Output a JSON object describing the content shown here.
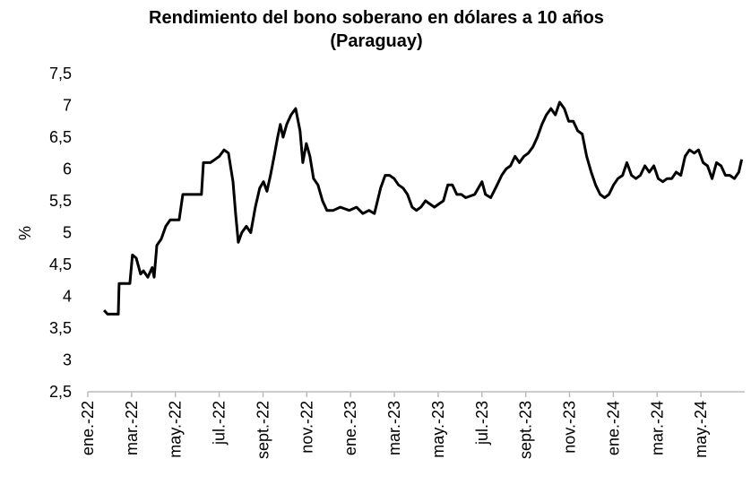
{
  "chart_data": {
    "type": "line",
    "title": [
      "Rendimiento del bono soberano en dólares a 10 años",
      "(Paraguay)"
    ],
    "y_label": "%",
    "color": "#000000",
    "x": [
      0.74,
      0.9,
      1.39,
      1.43,
      1.92,
      2.04,
      2.21,
      2.41,
      2.54,
      2.74,
      2.94,
      3.03,
      3.15,
      3.35,
      3.56,
      3.76,
      4.17,
      4.34,
      4.79,
      5.19,
      5.28,
      5.6,
      5.81,
      6.01,
      6.22,
      6.42,
      6.63,
      6.75,
      6.87,
      7.03,
      7.24,
      7.44,
      7.65,
      7.85,
      8.02,
      8.18,
      8.34,
      8.51,
      8.67,
      8.79,
      8.92,
      9.08,
      9.28,
      9.49,
      9.69,
      9.82,
      9.98,
      10.14,
      10.31,
      10.51,
      10.72,
      10.92,
      11.21,
      11.53,
      11.94,
      12.27,
      12.56,
      12.84,
      13.09,
      13.37,
      13.58,
      13.78,
      13.99,
      14.19,
      14.4,
      14.6,
      14.81,
      15.01,
      15.21,
      15.42,
      15.62,
      15.83,
      16.03,
      16.24,
      16.44,
      16.65,
      16.85,
      17.06,
      17.26,
      17.67,
      18.0,
      18.16,
      18.4,
      18.69,
      18.9,
      19.1,
      19.3,
      19.51,
      19.71,
      19.92,
      20.12,
      20.33,
      20.53,
      20.74,
      20.94,
      21.15,
      21.35,
      21.55,
      21.76,
      21.96,
      22.17,
      22.37,
      22.58,
      22.78,
      22.99,
      23.19,
      23.4,
      23.6,
      23.8,
      24.01,
      24.21,
      24.42,
      24.62,
      24.83,
      25.03,
      25.23,
      25.44,
      25.64,
      25.85,
      26.05,
      26.26,
      26.46,
      26.67,
      26.87,
      27.08,
      27.28,
      27.48,
      27.69,
      27.89,
      28.1,
      28.3,
      28.51,
      28.71,
      28.92,
      29.12,
      29.32,
      29.53,
      29.73,
      29.86
    ],
    "values": [
      3.78,
      3.72,
      3.72,
      4.2,
      4.2,
      4.65,
      4.6,
      4.35,
      4.4,
      4.3,
      4.45,
      4.3,
      4.8,
      4.9,
      5.1,
      5.2,
      5.2,
      5.6,
      5.6,
      5.6,
      6.1,
      6.1,
      6.15,
      6.2,
      6.3,
      6.25,
      5.8,
      5.3,
      4.85,
      5.0,
      5.1,
      5.0,
      5.4,
      5.7,
      5.8,
      5.65,
      5.9,
      6.2,
      6.5,
      6.7,
      6.5,
      6.7,
      6.85,
      6.95,
      6.6,
      6.1,
      6.4,
      6.2,
      5.85,
      5.75,
      5.5,
      5.35,
      5.35,
      5.4,
      5.35,
      5.4,
      5.3,
      5.35,
      5.3,
      5.7,
      5.9,
      5.9,
      5.85,
      5.75,
      5.7,
      5.6,
      5.4,
      5.35,
      5.4,
      5.5,
      5.45,
      5.4,
      5.45,
      5.5,
      5.75,
      5.75,
      5.6,
      5.6,
      5.55,
      5.6,
      5.8,
      5.6,
      5.55,
      5.75,
      5.9,
      6.0,
      6.05,
      6.2,
      6.1,
      6.2,
      6.25,
      6.35,
      6.5,
      6.7,
      6.85,
      6.95,
      6.85,
      7.05,
      6.95,
      6.75,
      6.75,
      6.6,
      6.55,
      6.2,
      5.95,
      5.75,
      5.6,
      5.55,
      5.6,
      5.75,
      5.85,
      5.9,
      6.1,
      5.9,
      5.85,
      5.9,
      6.05,
      5.95,
      6.05,
      5.85,
      5.8,
      5.85,
      5.85,
      5.95,
      5.9,
      6.2,
      6.3,
      6.25,
      6.3,
      6.1,
      6.05,
      5.85,
      6.1,
      6.05,
      5.9,
      5.9,
      5.85,
      5.95,
      6.15
    ],
    "xlim": [
      0,
      30
    ],
    "xticks": [
      {
        "value": 0,
        "label": "ene.-22"
      },
      {
        "value": 2,
        "label": "mar.-22"
      },
      {
        "value": 4,
        "label": "may.-22"
      },
      {
        "value": 6,
        "label": "jul.-22"
      },
      {
        "value": 8,
        "label": "sept.-22"
      },
      {
        "value": 10,
        "label": "nov.-22"
      },
      {
        "value": 12,
        "label": "ene.-23"
      },
      {
        "value": 14,
        "label": "mar.-23"
      },
      {
        "value": 16,
        "label": "may.-23"
      },
      {
        "value": 18,
        "label": "jul.-23"
      },
      {
        "value": 20,
        "label": "sept.-23"
      },
      {
        "value": 22,
        "label": "nov.-23"
      },
      {
        "value": 24,
        "label": "ene.-24"
      },
      {
        "value": 26,
        "label": "mar.-24"
      },
      {
        "value": 28,
        "label": "may.-24"
      }
    ],
    "ylim": [
      2.5,
      7.5
    ],
    "yticks": [
      {
        "value": 2.5,
        "label": "2,5"
      },
      3,
      {
        "value": 3.5,
        "label": "3,5"
      },
      4,
      {
        "value": 4.5,
        "label": "4,5"
      },
      5,
      {
        "value": 5.5,
        "label": "5,5"
      },
      6,
      {
        "value": 6.5,
        "label": "6,5"
      },
      7,
      {
        "value": 7.5,
        "label": "7,5"
      }
    ],
    "grid": false
  }
}
